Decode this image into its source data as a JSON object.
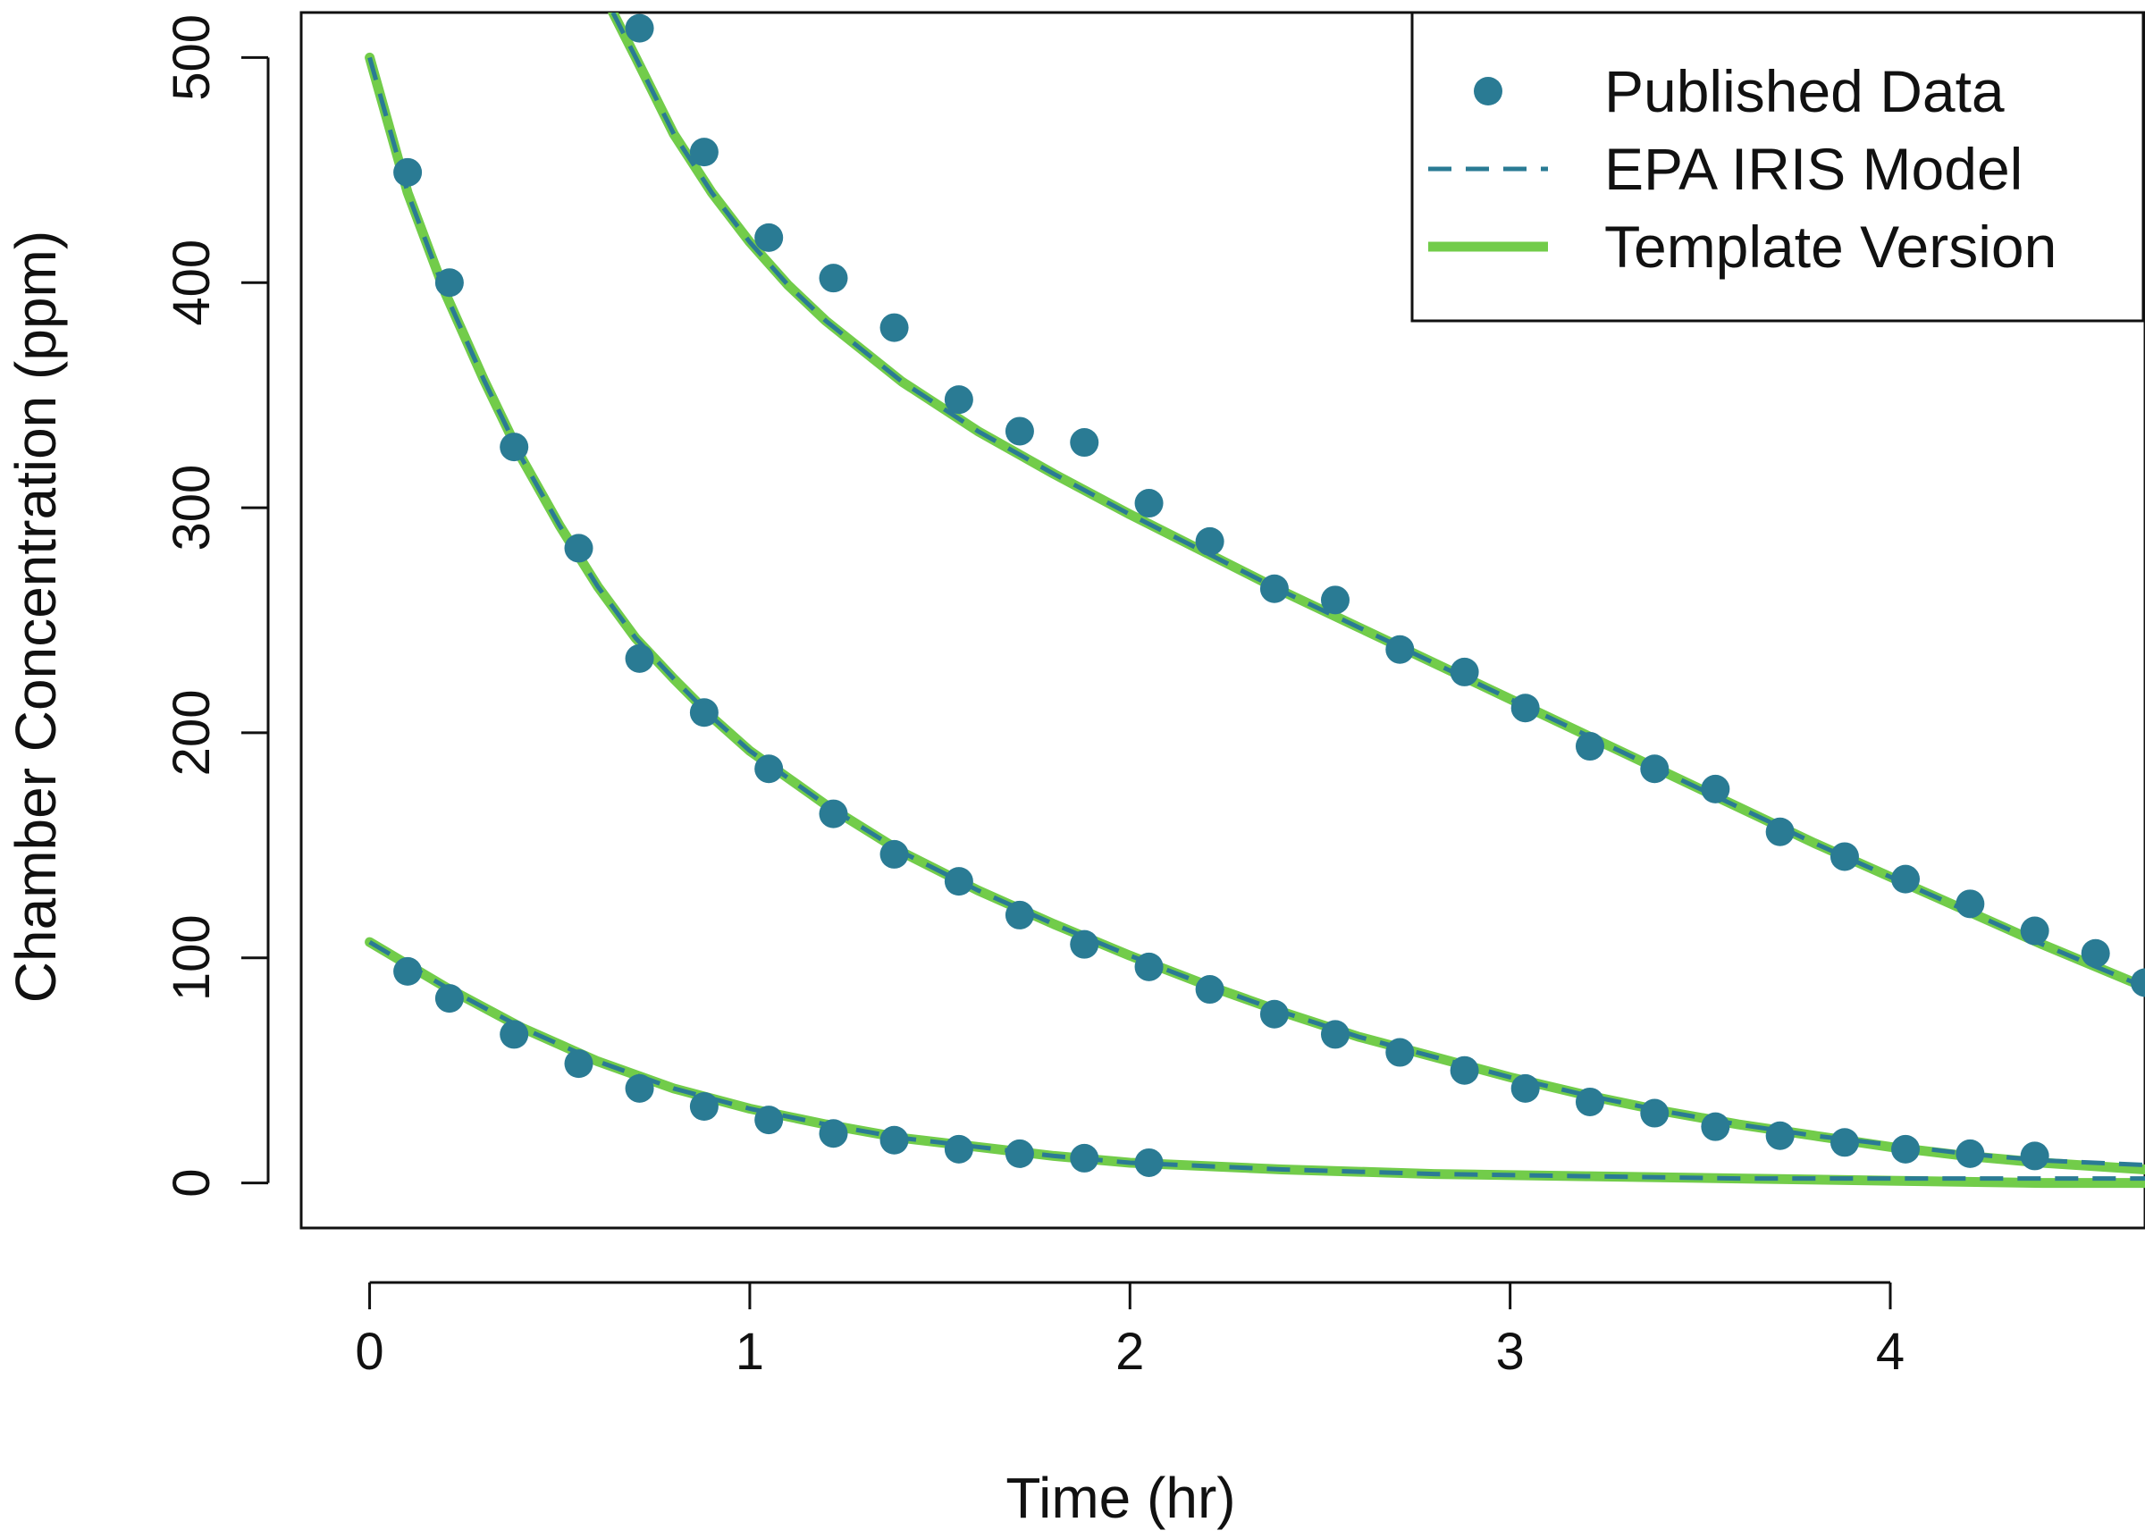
{
  "chart_data": {
    "type": "scatter",
    "title": "",
    "xlabel": "Time (hr)",
    "ylabel": "Chamber Concentration (ppm)",
    "xlim": [
      -0.18,
      4.67
    ],
    "ylim": [
      -20,
      520
    ],
    "x_ticks": [
      0,
      1,
      2,
      3,
      4
    ],
    "x_tick_labels": [
      "0",
      "1",
      "2",
      "3",
      "4"
    ],
    "y_ticks": [
      0,
      100,
      200,
      300,
      400,
      500
    ],
    "y_tick_labels": [
      "0",
      "100",
      "200",
      "300",
      "400",
      "500"
    ],
    "grid": false,
    "legend_position": "top-right",
    "colors": {
      "points": "#2a7b94",
      "epa_iris": "#2a7b94",
      "template": "#72cc4a",
      "axis": "#111111"
    },
    "legend": [
      {
        "label": "Published Data",
        "style": "point"
      },
      {
        "label": "EPA IRIS Model",
        "style": "dashed"
      },
      {
        "label": "Template Version",
        "style": "solid"
      }
    ],
    "series": [
      {
        "name": "Published Data",
        "kind": "points",
        "points": [
          [
            0.1,
            449
          ],
          [
            0.21,
            400
          ],
          [
            0.38,
            327
          ],
          [
            0.55,
            282
          ],
          [
            0.71,
            233
          ],
          [
            0.88,
            209
          ],
          [
            1.05,
            184
          ],
          [
            1.22,
            164
          ],
          [
            1.38,
            146
          ],
          [
            1.55,
            134
          ],
          [
            1.71,
            119
          ],
          [
            1.88,
            106
          ],
          [
            2.05,
            96
          ],
          [
            2.21,
            86
          ],
          [
            2.38,
            75
          ],
          [
            2.54,
            66
          ],
          [
            2.71,
            58
          ],
          [
            2.88,
            50
          ],
          [
            3.04,
            42
          ],
          [
            3.21,
            36
          ],
          [
            3.38,
            31
          ],
          [
            3.54,
            25
          ],
          [
            3.71,
            21
          ],
          [
            3.88,
            18
          ],
          [
            4.04,
            15
          ],
          [
            4.21,
            13
          ],
          [
            4.38,
            12
          ],
          [
            0.71,
            513
          ],
          [
            0.88,
            458
          ],
          [
            1.05,
            420
          ],
          [
            1.22,
            402
          ],
          [
            1.38,
            380
          ],
          [
            1.55,
            348
          ],
          [
            1.71,
            334
          ],
          [
            1.88,
            329
          ],
          [
            2.05,
            302
          ],
          [
            2.21,
            285
          ],
          [
            2.38,
            264
          ],
          [
            2.54,
            259
          ],
          [
            2.71,
            237
          ],
          [
            2.88,
            227
          ],
          [
            3.04,
            211
          ],
          [
            3.21,
            194
          ],
          [
            3.38,
            184
          ],
          [
            3.54,
            175
          ],
          [
            3.71,
            156
          ],
          [
            3.88,
            145
          ],
          [
            4.04,
            135
          ],
          [
            4.21,
            124
          ],
          [
            4.38,
            112
          ],
          [
            4.54,
            102
          ],
          [
            4.67,
            89
          ],
          [
            0.1,
            94
          ],
          [
            0.21,
            82
          ],
          [
            0.38,
            66
          ],
          [
            0.55,
            53
          ],
          [
            0.71,
            42
          ],
          [
            0.88,
            34
          ],
          [
            1.05,
            28
          ],
          [
            1.22,
            22
          ],
          [
            1.38,
            19
          ],
          [
            1.55,
            15
          ],
          [
            1.71,
            13
          ],
          [
            1.88,
            11
          ],
          [
            2.05,
            9
          ]
        ]
      },
      {
        "name": "EPA IRIS Model",
        "kind": "dashed",
        "curves": [
          [
            [
              0,
              500
            ],
            [
              0.1,
              440
            ],
            [
              0.2,
              395
            ],
            [
              0.3,
              357
            ],
            [
              0.4,
              322
            ],
            [
              0.5,
              292
            ],
            [
              0.6,
              265
            ],
            [
              0.7,
              242
            ],
            [
              0.8,
              224
            ],
            [
              0.9,
              207
            ],
            [
              1.0,
              192
            ],
            [
              1.2,
              168
            ],
            [
              1.4,
              147
            ],
            [
              1.6,
              130
            ],
            [
              1.8,
              115
            ],
            [
              2.0,
              101
            ],
            [
              2.2,
              88
            ],
            [
              2.4,
              76
            ],
            [
              2.6,
              65
            ],
            [
              2.8,
              56
            ],
            [
              3.0,
              47
            ],
            [
              3.2,
              39
            ],
            [
              3.4,
              32
            ],
            [
              3.6,
              26
            ],
            [
              3.8,
              21
            ],
            [
              4.0,
              17
            ],
            [
              4.2,
              13
            ],
            [
              4.4,
              10
            ],
            [
              4.67,
              8
            ]
          ],
          [
            [
              0.64,
              520
            ],
            [
              0.7,
              500
            ],
            [
              0.8,
              466
            ],
            [
              0.9,
              440
            ],
            [
              1.0,
              418
            ],
            [
              1.1,
              399
            ],
            [
              1.2,
              383
            ],
            [
              1.4,
              356
            ],
            [
              1.6,
              334
            ],
            [
              1.8,
              315
            ],
            [
              2.0,
              297
            ],
            [
              2.2,
              280
            ],
            [
              2.4,
              263
            ],
            [
              2.6,
              247
            ],
            [
              2.8,
              231
            ],
            [
              3.0,
              215
            ],
            [
              3.2,
              199
            ],
            [
              3.4,
              183
            ],
            [
              3.6,
              167
            ],
            [
              3.8,
              151
            ],
            [
              4.0,
              136
            ],
            [
              4.2,
              121
            ],
            [
              4.4,
              106
            ],
            [
              4.67,
              87
            ]
          ],
          [
            [
              0,
              107
            ],
            [
              0.2,
              87
            ],
            [
              0.4,
              69
            ],
            [
              0.6,
              54
            ],
            [
              0.8,
              42
            ],
            [
              1.0,
              33
            ],
            [
              1.2,
              26
            ],
            [
              1.4,
              20
            ],
            [
              1.6,
              16
            ],
            [
              1.8,
              12
            ],
            [
              2.0,
              9
            ],
            [
              2.4,
              6
            ],
            [
              2.8,
              4
            ],
            [
              3.2,
              3
            ],
            [
              3.6,
              2
            ],
            [
              4.0,
              2
            ],
            [
              4.4,
              2
            ],
            [
              4.67,
              2
            ]
          ]
        ]
      },
      {
        "name": "Template Version",
        "kind": "solid",
        "curves": [
          [
            [
              0,
              500
            ],
            [
              0.1,
              440
            ],
            [
              0.2,
              395
            ],
            [
              0.3,
              357
            ],
            [
              0.4,
              322
            ],
            [
              0.5,
              292
            ],
            [
              0.6,
              265
            ],
            [
              0.7,
              242
            ],
            [
              0.8,
              224
            ],
            [
              0.9,
              207
            ],
            [
              1.0,
              192
            ],
            [
              1.2,
              168
            ],
            [
              1.4,
              147
            ],
            [
              1.6,
              130
            ],
            [
              1.8,
              115
            ],
            [
              2.0,
              101
            ],
            [
              2.2,
              88
            ],
            [
              2.4,
              76
            ],
            [
              2.6,
              65
            ],
            [
              2.8,
              56
            ],
            [
              3.0,
              47
            ],
            [
              3.2,
              39
            ],
            [
              3.4,
              32
            ],
            [
              3.6,
              26
            ],
            [
              3.8,
              21
            ],
            [
              4.0,
              16
            ],
            [
              4.2,
              12
            ],
            [
              4.4,
              9
            ],
            [
              4.67,
              6
            ]
          ],
          [
            [
              0.64,
              520
            ],
            [
              0.7,
              500
            ],
            [
              0.8,
              466
            ],
            [
              0.9,
              440
            ],
            [
              1.0,
              418
            ],
            [
              1.1,
              399
            ],
            [
              1.2,
              383
            ],
            [
              1.4,
              356
            ],
            [
              1.6,
              334
            ],
            [
              1.8,
              315
            ],
            [
              2.0,
              297
            ],
            [
              2.2,
              280
            ],
            [
              2.4,
              263
            ],
            [
              2.6,
              247
            ],
            [
              2.8,
              231
            ],
            [
              3.0,
              215
            ],
            [
              3.2,
              199
            ],
            [
              3.4,
              183
            ],
            [
              3.6,
              167
            ],
            [
              3.8,
              151
            ],
            [
              4.0,
              136
            ],
            [
              4.2,
              121
            ],
            [
              4.4,
              106
            ],
            [
              4.67,
              87
            ]
          ],
          [
            [
              0,
              107
            ],
            [
              0.2,
              87
            ],
            [
              0.4,
              69
            ],
            [
              0.6,
              54
            ],
            [
              0.8,
              42
            ],
            [
              1.0,
              33
            ],
            [
              1.2,
              26
            ],
            [
              1.4,
              20
            ],
            [
              1.6,
              16
            ],
            [
              1.8,
              12
            ],
            [
              2.0,
              9
            ],
            [
              2.4,
              6
            ],
            [
              2.8,
              4
            ],
            [
              3.2,
              3
            ],
            [
              3.6,
              2
            ],
            [
              4.0,
              1
            ],
            [
              4.4,
              0
            ],
            [
              4.67,
              0
            ]
          ]
        ]
      }
    ]
  }
}
